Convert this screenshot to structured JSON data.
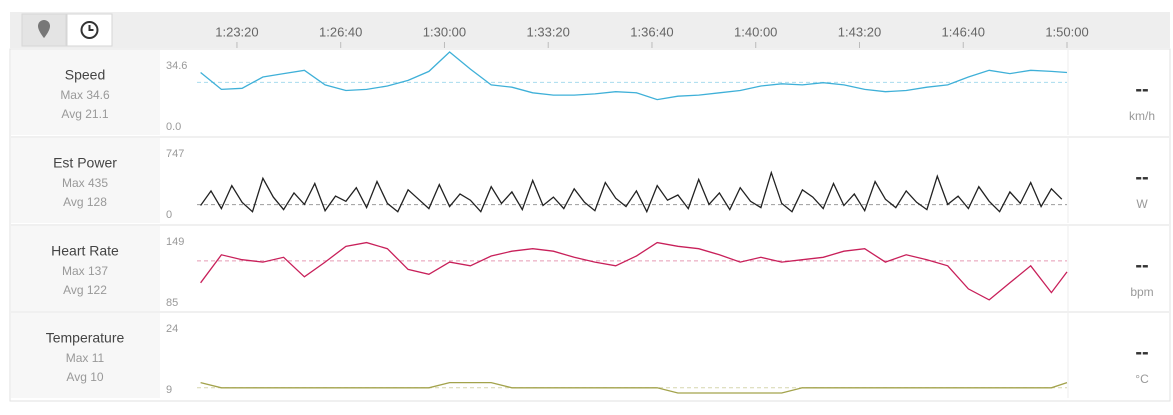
{
  "chart_data": [
    {
      "type": "line",
      "title": "Speed",
      "max_label": "Max 34.6",
      "avg_label": "Avg 21.1",
      "avg": 21.1,
      "current": "--",
      "unit": "km/h",
      "color": "#3fb0d8",
      "xlim": [
        4923,
        6600
      ],
      "xticks": [
        {
          "value": 5000,
          "label": "1:23:20"
        },
        {
          "value": 5200,
          "label": "1:26:40"
        },
        {
          "value": 5400,
          "label": "1:30:00"
        },
        {
          "value": 5600,
          "label": "1:33:20"
        },
        {
          "value": 5800,
          "label": "1:36:40"
        },
        {
          "value": 6000,
          "label": "1:40:00"
        },
        {
          "value": 6200,
          "label": "1:43:20"
        },
        {
          "value": 6400,
          "label": "1:46:40"
        },
        {
          "value": 6600,
          "label": "1:50:00"
        }
      ],
      "ylim": [
        0,
        34.6
      ],
      "yticks": [
        {
          "value": 0,
          "label": "0.0"
        },
        34.6
      ],
      "x": [
        4930,
        4970,
        5010,
        5050,
        5090,
        5130,
        5170,
        5210,
        5250,
        5290,
        5330,
        5370,
        5410,
        5450,
        5490,
        5530,
        5570,
        5610,
        5650,
        5690,
        5730,
        5770,
        5810,
        5850,
        5890,
        5930,
        5970,
        6010,
        6050,
        6090,
        6130,
        6170,
        6210,
        6250,
        6290,
        6330,
        6370,
        6410,
        6450,
        6490,
        6530,
        6570,
        6600
      ],
      "values": [
        25.5,
        18,
        18.5,
        23.5,
        25,
        26.5,
        20,
        17.5,
        18,
        19.5,
        22,
        26,
        34.6,
        27,
        20,
        19,
        16.5,
        15.5,
        15.5,
        16,
        17,
        16.5,
        13.5,
        15,
        15.5,
        16.5,
        17.5,
        19.5,
        20.5,
        20,
        21,
        20,
        18,
        17,
        17.5,
        19,
        20,
        23.5,
        26.5,
        25,
        26.5,
        26,
        25.5
      ]
    },
    {
      "type": "line",
      "title": "Est Power",
      "max_label": "Max 435",
      "avg_label": "Avg 128",
      "avg": 128,
      "current": "--",
      "unit": "W",
      "color": "#222222",
      "xlim": [
        4923,
        6600
      ],
      "ylim": [
        0,
        747
      ],
      "yticks": [
        0,
        747
      ],
      "x": [
        4930,
        4950,
        4970,
        4990,
        5010,
        5030,
        5050,
        5070,
        5090,
        5110,
        5130,
        5150,
        5170,
        5190,
        5210,
        5230,
        5250,
        5270,
        5290,
        5310,
        5330,
        5350,
        5370,
        5390,
        5410,
        5430,
        5450,
        5470,
        5490,
        5510,
        5530,
        5550,
        5570,
        5590,
        5610,
        5630,
        5650,
        5670,
        5690,
        5710,
        5730,
        5750,
        5770,
        5790,
        5810,
        5830,
        5850,
        5870,
        5890,
        5910,
        5930,
        5950,
        5970,
        5990,
        6010,
        6030,
        6050,
        6070,
        6090,
        6110,
        6130,
        6150,
        6170,
        6190,
        6210,
        6230,
        6250,
        6270,
        6290,
        6310,
        6330,
        6350,
        6370,
        6390,
        6410,
        6430,
        6450,
        6470,
        6490,
        6510,
        6530,
        6550,
        6570,
        6590
      ],
      "values": [
        120,
        260,
        90,
        310,
        150,
        60,
        380,
        200,
        80,
        240,
        130,
        330,
        70,
        210,
        160,
        290,
        100,
        350,
        140,
        60,
        270,
        180,
        90,
        320,
        110,
        230,
        170,
        60,
        300,
        140,
        250,
        80,
        360,
        120,
        200,
        90,
        280,
        150,
        70,
        340,
        190,
        110,
        260,
        60,
        310,
        170,
        220,
        90,
        370,
        130,
        240,
        80,
        290,
        160,
        100,
        435,
        140,
        60,
        270,
        200,
        90,
        330,
        120,
        230,
        70,
        350,
        180,
        100,
        260,
        150,
        80,
        400,
        130,
        210,
        90,
        300,
        160,
        60,
        250,
        140,
        340,
        110,
        280,
        180
      ]
    },
    {
      "type": "line",
      "title": "Heart Rate",
      "max_label": "Max 137",
      "avg_label": "Avg 122",
      "avg": 122,
      "current": "--",
      "unit": "bpm",
      "color": "#c8205a",
      "xlim": [
        4923,
        6600
      ],
      "ylim": [
        85,
        149
      ],
      "yticks": [
        85,
        149
      ],
      "x": [
        4930,
        4970,
        5010,
        5050,
        5090,
        5130,
        5170,
        5210,
        5250,
        5290,
        5330,
        5370,
        5410,
        5450,
        5490,
        5530,
        5570,
        5610,
        5650,
        5690,
        5730,
        5770,
        5810,
        5850,
        5890,
        5930,
        5970,
        6010,
        6050,
        6090,
        6130,
        6170,
        6210,
        6250,
        6290,
        6330,
        6370,
        6410,
        6450,
        6490,
        6530,
        6570,
        6600
      ],
      "values": [
        104,
        127,
        123,
        121,
        125,
        109,
        121,
        134,
        137,
        132,
        115,
        111,
        121,
        118,
        126,
        130,
        132,
        130,
        125,
        121,
        118,
        126,
        137,
        134,
        132,
        127,
        121,
        125,
        121,
        123,
        125,
        130,
        132,
        121,
        127,
        123,
        118,
        99,
        90,
        104,
        118,
        96,
        113
      ]
    },
    {
      "type": "line",
      "title": "Temperature",
      "max_label": "Max 11",
      "avg_label": "Avg 10",
      "avg": 10,
      "current": "--",
      "unit": "°C",
      "color": "#a3a34c",
      "xlim": [
        4923,
        6600
      ],
      "ylim": [
        9,
        24
      ],
      "yticks": [
        9,
        24
      ],
      "x": [
        4930,
        4970,
        5010,
        5050,
        5090,
        5130,
        5170,
        5210,
        5250,
        5290,
        5330,
        5370,
        5410,
        5450,
        5490,
        5530,
        5570,
        5610,
        5650,
        5690,
        5730,
        5770,
        5810,
        5850,
        5890,
        5930,
        5970,
        6010,
        6050,
        6090,
        6130,
        6170,
        6210,
        6250,
        6290,
        6330,
        6370,
        6410,
        6450,
        6490,
        6530,
        6570,
        6600
      ],
      "values": [
        11,
        10,
        10,
        10,
        10,
        10,
        10,
        10,
        10,
        10,
        10,
        10,
        11,
        11,
        11,
        10,
        10,
        10,
        10,
        10,
        10,
        10,
        10,
        9,
        9,
        9,
        9,
        9,
        9,
        10,
        10,
        10,
        10,
        10,
        10,
        10,
        10,
        10,
        10,
        10,
        10,
        10,
        11
      ]
    }
  ]
}
